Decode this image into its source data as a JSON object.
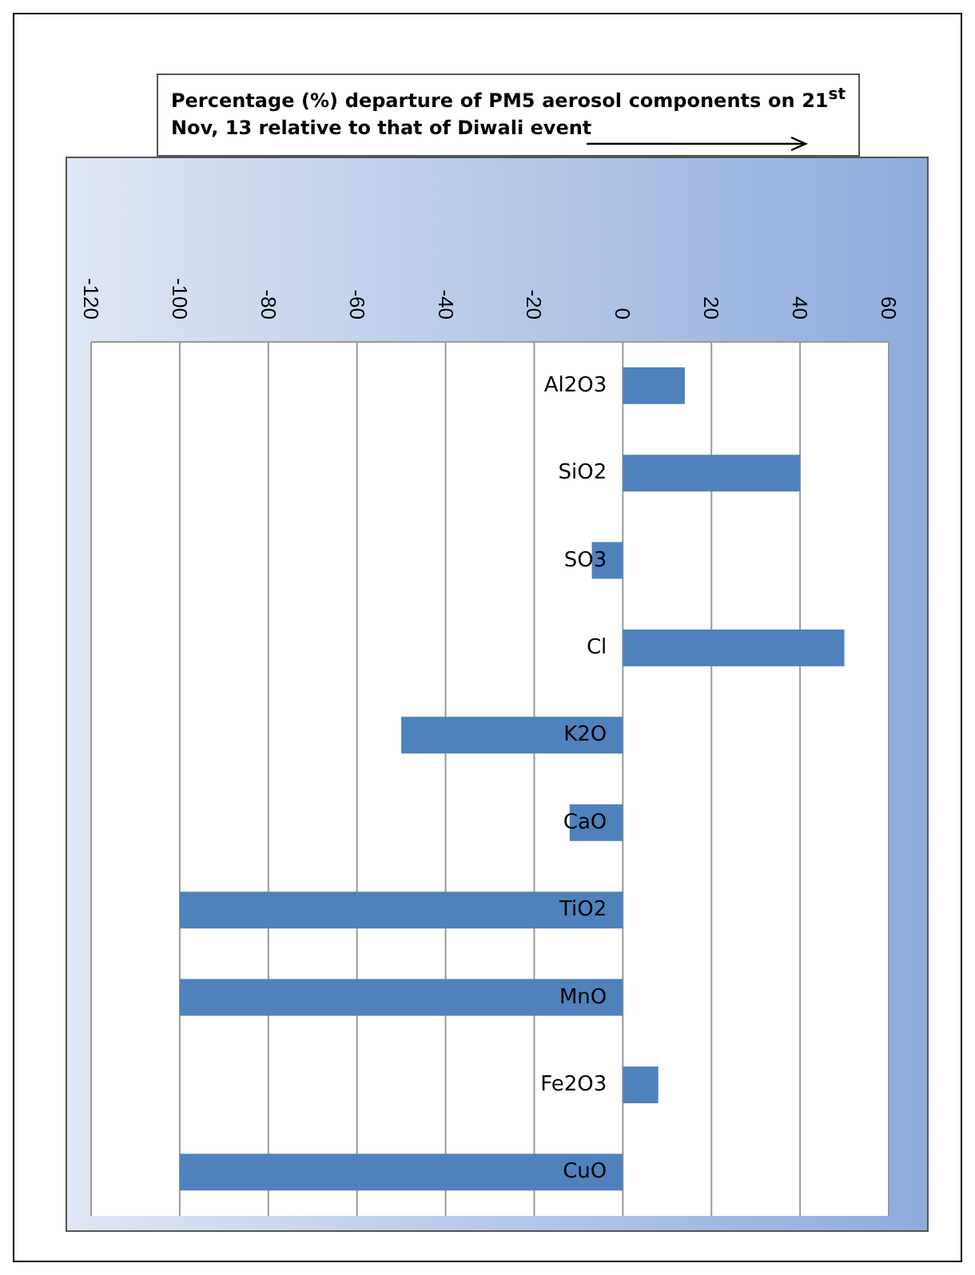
{
  "chart_data": {
    "type": "bar",
    "orientation": "horizontal",
    "title": "Percentage (%) departure of PM5 aerosol components on 21$^{st}$ Nov, 13 relative to that of Diwali event",
    "categories": [
      "Al2O3",
      "SiO2",
      "SO3",
      "Cl",
      "K2O",
      "CaO",
      "TiO2",
      "MnO",
      "Fe2O3",
      "CuO"
    ],
    "values": [
      14,
      40,
      -7,
      50,
      -50,
      -12,
      -100,
      -100,
      8,
      -100
    ],
    "color": "#4f81bd",
    "xlim": [
      -120,
      60
    ],
    "xticks": [
      -120,
      -100,
      -80,
      -60,
      -40,
      -20,
      0,
      20,
      40,
      60
    ],
    "grid": "x"
  }
}
